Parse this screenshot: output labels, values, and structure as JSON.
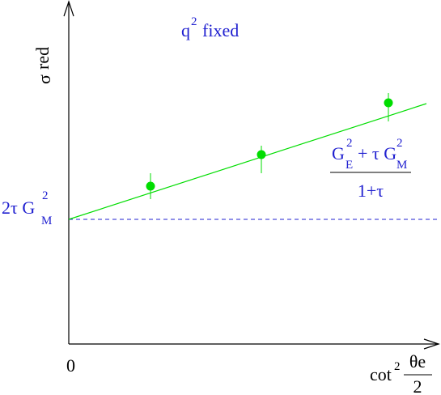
{
  "title": {
    "base": "q",
    "sup": "2",
    "rest": "fixed"
  },
  "y_label": {
    "base": "σ",
    "sub": "red"
  },
  "intercept_label": {
    "prefix": "2τ G",
    "sub": "M",
    "sup": "2"
  },
  "slope_label": {
    "numerator": {
      "g1": "G",
      "sub1": "E",
      "sup1": "2",
      "mid": "+ τ G",
      "sub2": "M",
      "sup2": "2"
    },
    "denominator": "1+τ"
  },
  "origin_label": "0",
  "x_label": {
    "base": "cot",
    "sup": "2",
    "frac_num": "θe",
    "frac_den": "2"
  }
}
